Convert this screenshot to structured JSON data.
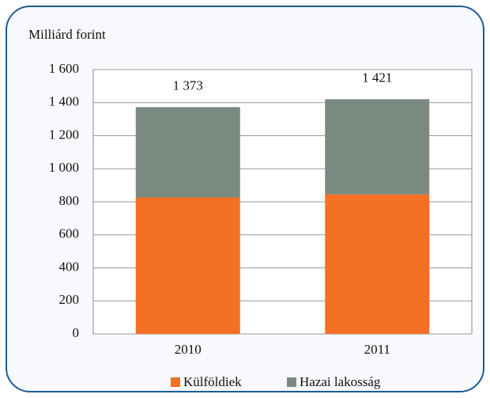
{
  "chart_data": {
    "type": "stacked_bar",
    "y_label": "Milliárd forint",
    "categories": [
      "2010",
      "2011"
    ],
    "series": [
      {
        "name": "Külföldiek",
        "color": "#f47024",
        "values": [
          826,
          845
        ]
      },
      {
        "name": "Hazai lakosság",
        "color": "#7a8a80",
        "values": [
          547,
          576
        ]
      }
    ],
    "totals": [
      1373,
      1421
    ],
    "total_labels": [
      "1 373",
      "1 421"
    ],
    "ylim": [
      0,
      1600
    ],
    "yticks": [
      0,
      200,
      400,
      600,
      800,
      {
        "value": 1000,
        "label": "1 000"
      },
      {
        "value": 1200,
        "label": "1 200"
      },
      {
        "value": 1400,
        "label": "1 400"
      },
      {
        "value": 1600,
        "label": "1 600"
      }
    ],
    "grid": true
  }
}
